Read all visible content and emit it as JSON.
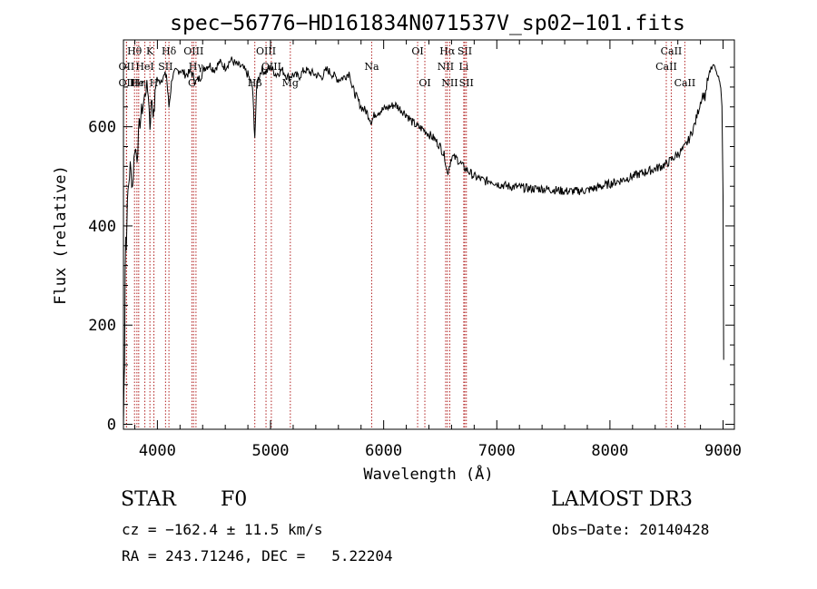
{
  "chart_data": {
    "type": "line",
    "title": "spec−56776−HD161834N071537V_sp02−101.fits",
    "xlabel": "Wavelength (Å)",
    "ylabel": "Flux (relative)",
    "xlim": [
      3700,
      9100
    ],
    "ylim": [
      -10,
      775
    ],
    "xticks": [
      4000,
      5000,
      6000,
      7000,
      8000,
      9000
    ],
    "yticks": [
      0,
      200,
      400,
      600
    ],
    "grid": false,
    "line_color": "#000000",
    "marker_color": "#b22222",
    "series": [
      {
        "x": [
          3700,
          3705,
          3710,
          3715,
          3720,
          3725,
          3730,
          3740,
          3760,
          3780,
          3800,
          3820,
          3840,
          3860,
          3880,
          3900,
          3920,
          3934,
          3950,
          3968,
          3990,
          4010,
          4050,
          4080,
          4102,
          4130,
          4160,
          4200,
          4250,
          4300,
          4340,
          4380,
          4420,
          4460,
          4500,
          4550,
          4600,
          4650,
          4700,
          4750,
          4800,
          4840,
          4861,
          4880,
          4920,
          4960,
          5000,
          5050,
          5100,
          5150,
          5200,
          5250,
          5300,
          5350,
          5400,
          5450,
          5500,
          5550,
          5600,
          5650,
          5700,
          5720,
          5760,
          5800,
          5850,
          5893,
          5920,
          5950,
          6000,
          6050,
          6100,
          6150,
          6200,
          6250,
          6300,
          6350,
          6400,
          6450,
          6500,
          6540,
          6563,
          6580,
          6600,
          6650,
          6700,
          6750,
          6800,
          6850,
          6900,
          6950,
          7000,
          7100,
          7200,
          7300,
          7400,
          7500,
          7600,
          7700,
          7800,
          7900,
          8000,
          8100,
          8200,
          8300,
          8400,
          8500,
          8550,
          8600,
          8650,
          8700,
          8750,
          8800,
          8820,
          8840,
          8860,
          8880,
          8900,
          8920,
          8940,
          8960,
          8970,
          8980,
          8990,
          9000,
          9005
        ],
        "y": [
          0,
          80,
          130,
          320,
          380,
          350,
          410,
          470,
          520,
          480,
          560,
          540,
          600,
          630,
          650,
          680,
          670,
          600,
          660,
          620,
          700,
          690,
          700,
          705,
          640,
          700,
          710,
          715,
          705,
          710,
          690,
          700,
          720,
          725,
          715,
          730,
          720,
          735,
          725,
          720,
          705,
          680,
          580,
          690,
          715,
          710,
          720,
          705,
          715,
          700,
          705,
          700,
          715,
          710,
          705,
          700,
          715,
          705,
          695,
          700,
          710,
          680,
          660,
          640,
          630,
          610,
          625,
          630,
          635,
          640,
          645,
          635,
          625,
          610,
          600,
          595,
          585,
          575,
          560,
          540,
          505,
          520,
          540,
          535,
          520,
          510,
          500,
          495,
          490,
          492,
          485,
          480,
          478,
          475,
          475,
          473,
          470,
          470,
          472,
          478,
          485,
          492,
          500,
          508,
          515,
          525,
          535,
          545,
          555,
          575,
          605,
          650,
          665,
          660,
          690,
          705,
          720,
          725,
          710,
          700,
          690,
          680,
          640,
          460,
          130
        ]
      }
    ],
    "lines": [
      {
        "label": "OII",
        "wl": 3727,
        "row": 2
      },
      {
        "label": "OII",
        "wl": 3727,
        "row": 3
      },
      {
        "label": "Hθ",
        "wl": 3798,
        "row": 1
      },
      {
        "label": "He",
        "wl": 3819,
        "row": 3
      },
      {
        "label": "Hη",
        "wl": 3835,
        "row": 3
      },
      {
        "label": "HeI",
        "wl": 3889,
        "row": 2
      },
      {
        "label": "K",
        "wl": 3934,
        "row": 1
      },
      {
        "label": "SII",
        "wl": 4072,
        "row": 2
      },
      {
        "label": "H",
        "wl": 3969,
        "row": 3
      },
      {
        "label": "Hδ",
        "wl": 4102,
        "row": 1
      },
      {
        "label": "OIII",
        "wl": 4320,
        "row": 1
      },
      {
        "label": "G",
        "wl": 4305,
        "row": 3
      },
      {
        "label": "Hγ",
        "wl": 4341,
        "row": 2
      },
      {
        "label": "Hβ",
        "wl": 4861,
        "row": 3
      },
      {
        "label": "OIII",
        "wl": 4960,
        "row": 1
      },
      {
        "label": "OIII",
        "wl": 5007,
        "row": 2
      },
      {
        "label": "Mg",
        "wl": 5175,
        "row": 3
      },
      {
        "label": "Na",
        "wl": 5894,
        "row": 2
      },
      {
        "label": "OI",
        "wl": 6300,
        "row": 1
      },
      {
        "label": "OI",
        "wl": 6364,
        "row": 3
      },
      {
        "label": "Hα",
        "wl": 6563,
        "row": 1
      },
      {
        "label": "NII",
        "wl": 6548,
        "row": 2
      },
      {
        "label": "NII",
        "wl": 6584,
        "row": 3
      },
      {
        "label": "SII",
        "wl": 6717,
        "row": 1
      },
      {
        "label": "Li",
        "wl": 6708,
        "row": 2
      },
      {
        "label": "SII",
        "wl": 6731,
        "row": 3
      },
      {
        "label": "CaII",
        "wl": 8542,
        "row": 1
      },
      {
        "label": "CaII",
        "wl": 8498,
        "row": 2
      },
      {
        "label": "CaII",
        "wl": 8662,
        "row": 3
      }
    ]
  },
  "info": {
    "obj_type": "STAR",
    "subclass": "F0",
    "survey": "LAMOST DR3",
    "cz": "cz = −162.4 ± 11.5 km/s",
    "obs_date": "Obs−Date: 20140428",
    "ra_dec": "RA = 243.71246, DEC =   5.22204"
  }
}
